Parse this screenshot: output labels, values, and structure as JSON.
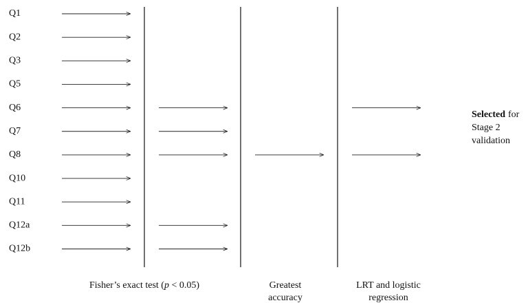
{
  "questions": [
    "Q1",
    "Q2",
    "Q3",
    "Q5",
    "Q6",
    "Q7",
    "Q8",
    "Q10",
    "Q11",
    "Q12a",
    "Q12b"
  ],
  "stages": [
    {
      "label": {
        "before": "Fisher’s exact test (",
        "italic": "p",
        "after": " < 0.05)"
      }
    },
    {
      "label_lines": [
        "Greatest",
        "accuracy"
      ]
    },
    {
      "label_lines": [
        "LRT and logistic",
        "regression"
      ]
    }
  ],
  "output": {
    "emphasis": "Selected",
    "first_line_rest": "for",
    "lines": [
      "Stage 2",
      "validation"
    ]
  }
}
